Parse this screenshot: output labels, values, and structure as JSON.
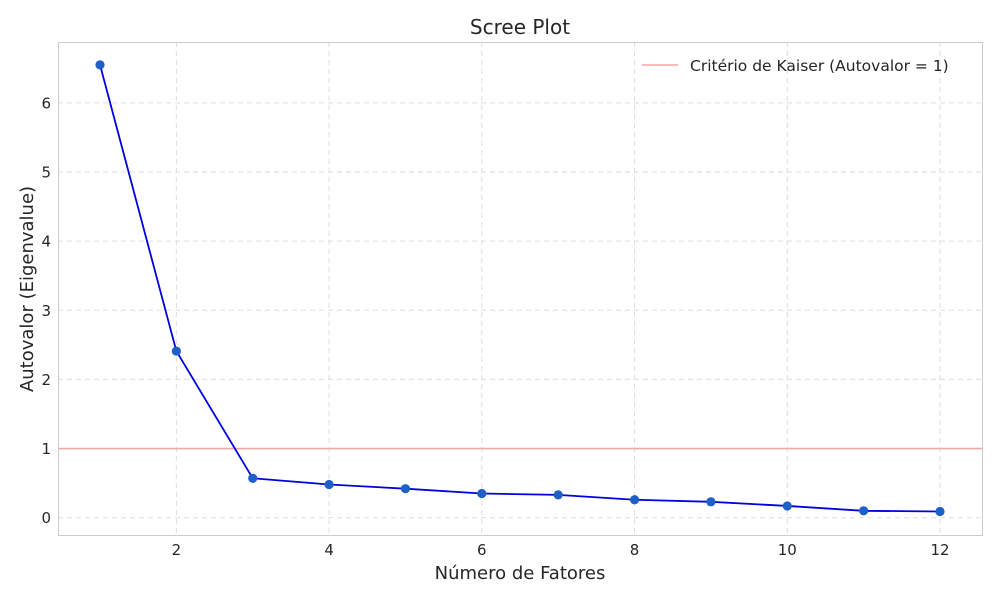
{
  "chart_data": {
    "type": "line",
    "title": "Scree Plot",
    "xlabel": "Número de Fatores",
    "ylabel": "Autovalor (Eigenvalue)",
    "xlim": [
      0.45,
      12.55
    ],
    "ylim": [
      -0.25,
      6.88
    ],
    "x_ticks": [
      2,
      4,
      6,
      8,
      10,
      12
    ],
    "y_ticks": [
      0,
      1,
      2,
      3,
      4,
      5,
      6
    ],
    "grid": true,
    "legend_position": "top-right",
    "series": [
      {
        "x": [
          1,
          2,
          3,
          4,
          5,
          6,
          7,
          8,
          9,
          10,
          11,
          12
        ],
        "values": [
          6.55,
          2.41,
          0.57,
          0.48,
          0.42,
          0.35,
          0.33,
          0.26,
          0.23,
          0.17,
          0.1,
          0.09
        ],
        "color": "#0000e0",
        "marker_color": "#1f5fc8"
      }
    ],
    "reference_lines": [
      {
        "name": "Critério de Kaiser (Autovalor = 1)",
        "y": 1,
        "color": "#f4a6a6"
      }
    ]
  }
}
